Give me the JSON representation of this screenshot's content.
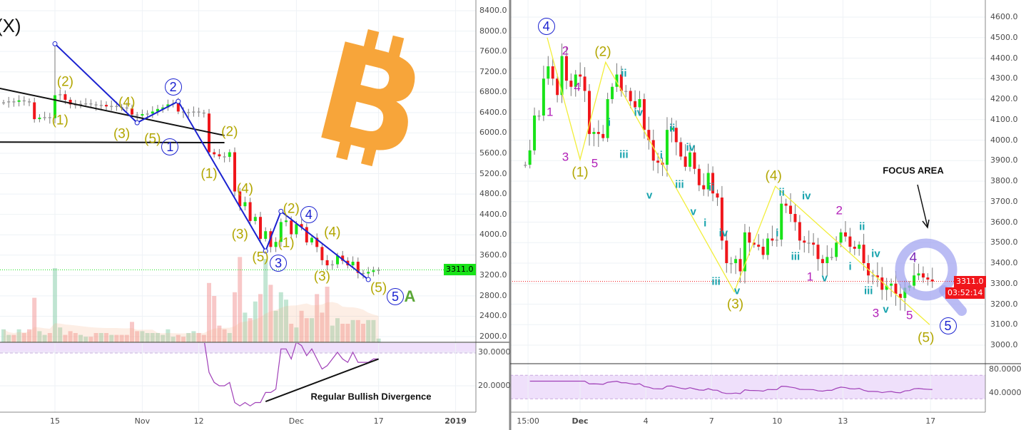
{
  "colors": {
    "up": "#19e319",
    "down": "#f0161b",
    "wick": "#7a7a7a",
    "wave_blue": "#1b22d0",
    "wave_yellow": "#f2ee3a",
    "rsi": "#a040b8",
    "rsi_band": "#efe0fb",
    "bitcoin_orange": "#f7a53a",
    "magnifier": "#a3a6f0",
    "price_line_left": "#19e319",
    "price_line_right": "#f0161b",
    "grid": "#eef2f6"
  },
  "chart_data": [
    {
      "type": "candlestick",
      "timeframe": "daily",
      "first_date": "Oct 5",
      "closes": [
        6600,
        6620,
        6610,
        6640,
        6620,
        6600,
        6270,
        6300,
        6310,
        6290,
        6740,
        6760,
        6650,
        6560,
        6550,
        6570,
        6580,
        6560,
        6540,
        6550,
        6520,
        6530,
        6510,
        6500,
        6480,
        6360,
        6340,
        6370,
        6380,
        6420,
        6470,
        6500,
        6560,
        6580,
        6420,
        6400,
        6410,
        6420,
        6400,
        6380,
        5620,
        5580,
        5540,
        5530,
        5620,
        4850,
        4560,
        4640,
        4270,
        4350,
        3920,
        4070,
        3760,
        3860,
        4250,
        4280,
        4010,
        4210,
        4150,
        3850,
        3940,
        3760,
        3500,
        3400,
        3420,
        3590,
        3490,
        3400,
        3470,
        3250,
        3240,
        3270,
        3300,
        3311
      ],
      "wick_overrides": [
        {
          "date": "Oct 15",
          "high": 7750
        }
      ],
      "volume": [
        7,
        4,
        4,
        7,
        5,
        7,
        24,
        6,
        4,
        5,
        40,
        8,
        4,
        6,
        5,
        4,
        3,
        3,
        5,
        5,
        5,
        4,
        4,
        4,
        4,
        11,
        6,
        6,
        5,
        5,
        5,
        4,
        7,
        3,
        4,
        3,
        5,
        6,
        5,
        4,
        32,
        25,
        9,
        7,
        5,
        27,
        46,
        16,
        13,
        22,
        26,
        45,
        31,
        17,
        27,
        23,
        10,
        8,
        17,
        13,
        13,
        26,
        16,
        30,
        9,
        13,
        10,
        10,
        12,
        12,
        10,
        12,
        12,
        2
      ],
      "rsi": {
        "first_date": "Nov 13",
        "values": [
          34,
          24,
          21,
          20,
          20,
          21,
          15,
          14,
          15,
          14,
          15,
          15,
          18,
          18,
          19,
          31,
          31,
          28,
          33,
          32,
          29,
          31,
          28,
          25,
          26,
          28,
          30,
          28,
          27,
          30,
          27,
          27,
          27,
          28,
          28
        ],
        "axis_labels": [
          "30.0000",
          "20.0000"
        ]
      },
      "price_axis_labels": [
        "8400.0",
        "8000.0",
        "7600.0",
        "7200.0",
        "6800.0",
        "6400.0",
        "6000.0",
        "5600.0",
        "5200.0",
        "4800.0",
        "4400.0",
        "4000.0",
        "3600.0",
        "3200.0",
        "2800.0",
        "2400.0",
        "2000.0"
      ],
      "time_axis": [
        {
          "label": "15",
          "date": "Oct 15"
        },
        {
          "label": "Nov",
          "date": "Nov 1"
        },
        {
          "label": "12",
          "date": "Nov 12"
        },
        {
          "label": "Dec",
          "date": "Dec 1"
        },
        {
          "label": "17",
          "date": "Dec 17"
        },
        {
          "label": "2019",
          "date": "Jan 1 2019"
        }
      ],
      "last_price": "3311.0",
      "wave_line": [
        [
          "Oct 15",
          7750
        ],
        [
          "Oct 31",
          6200
        ],
        [
          "Nov 8",
          6620
        ],
        [
          "Nov 25",
          3680
        ],
        [
          "Nov 28",
          4460
        ],
        [
          "Dec 15",
          3120
        ]
      ],
      "trendlines": [
        [
          [
            "Oct 4",
            6880
          ],
          [
            "Nov 17",
            5950
          ]
        ],
        [
          [
            "Oct 4",
            5820
          ],
          [
            "Nov 17",
            5810
          ]
        ]
      ],
      "divergence_line": [
        [
          "Nov 25",
          15.3
        ],
        [
          "Dec 17",
          28
        ]
      ],
      "annotations": [
        {
          "text": "(X)",
          "date": "Oct 6",
          "price": 8100,
          "style": "black"
        },
        {
          "text": "(2)",
          "date": "Oct 17",
          "price": 7000,
          "style": "olive"
        },
        {
          "text": "(1)",
          "date": "Oct 16",
          "price": 6250,
          "style": "olive"
        },
        {
          "text": "(4)",
          "date": "Oct 29",
          "price": 6600,
          "style": "olive"
        },
        {
          "text": "(3)",
          "date": "Oct 28",
          "price": 5980,
          "style": "olive"
        },
        {
          "text": "(5)",
          "date": "Nov 3",
          "price": 5880,
          "style": "olive"
        },
        {
          "text": "(2)",
          "date": "Nov 18",
          "price": 6020,
          "style": "olive"
        },
        {
          "text": "(1)",
          "date": "Nov 14",
          "price": 5200,
          "style": "olive"
        },
        {
          "text": "(4)",
          "date": "Nov 21",
          "price": 4900,
          "style": "olive"
        },
        {
          "text": "(3)",
          "date": "Nov 20",
          "price": 4000,
          "style": "olive"
        },
        {
          "text": "(5)",
          "date": "Nov 24",
          "price": 3560,
          "style": "olive"
        },
        {
          "text": "(2)",
          "date": "Nov 30",
          "price": 4500,
          "style": "olive"
        },
        {
          "text": "(1)",
          "date": "Nov 29",
          "price": 3840,
          "style": "olive"
        },
        {
          "text": "(4)",
          "date": "Dec 8",
          "price": 4050,
          "style": "olive"
        },
        {
          "text": "(3)",
          "date": "Dec 6",
          "price": 3170,
          "style": "olive"
        },
        {
          "text": "(5)",
          "date": "Dec 17",
          "price": 2950,
          "style": "olive"
        },
        {
          "text": "1",
          "date": "Nov 1",
          "price": 5890,
          "style": "circled"
        },
        {
          "text": "2",
          "date": "Nov 7",
          "price": 6900,
          "style": "circled"
        },
        {
          "text": "3",
          "date": "Nov 25",
          "price": 3480,
          "style": "circled"
        },
        {
          "text": "4",
          "date": "Nov 28",
          "price": 4570,
          "style": "circled"
        },
        {
          "text": "5",
          "date": "Dec 14",
          "price": 2950,
          "style": "circled"
        },
        {
          "text": "A",
          "date": "Dec 21",
          "price": 2820,
          "style": "green-big"
        }
      ],
      "divergence_text": "Regular Bullish Divergence"
    },
    {
      "type": "candlestick",
      "first_time": "Nov 28 12:00",
      "last_time": "Dec 17 02:00",
      "closes": [
        3880,
        3950,
        4120,
        4120,
        4300,
        4360,
        4300,
        4220,
        4410,
        4290,
        4260,
        4320,
        4310,
        4240,
        4030,
        4040,
        4030,
        4010,
        4200,
        4260,
        4320,
        4240,
        4240,
        4190,
        4160,
        4200,
        4050,
        4000,
        3900,
        3890,
        3880,
        4050,
        4060,
        3990,
        3920,
        3870,
        3940,
        3860,
        3780,
        3760,
        3840,
        3740,
        3720,
        3510,
        3400,
        3400,
        3420,
        3360,
        3550,
        3500,
        3490,
        3480,
        3440,
        3520,
        3510,
        3515,
        3690,
        3680,
        3640,
        3600,
        3510,
        3500,
        3500,
        3490,
        3420,
        3400,
        3430,
        3430,
        3500,
        3550,
        3530,
        3480,
        3470,
        3490,
        3400,
        3340,
        3340,
        3330,
        3270,
        3290,
        3300,
        3250,
        3230,
        3280,
        3290,
        3340,
        3350,
        3330,
        3320,
        3311
      ],
      "price_axis_labels": [
        "4600.0",
        "4500.0",
        "4400.0",
        "4300.0",
        "4200.0",
        "4100.0",
        "4000.0",
        "3900.0",
        "3800.0",
        "3700.0",
        "3600.0",
        "3500.0",
        "3400.0",
        "3300.0",
        "3200.0",
        "3100.0",
        "3000.0"
      ],
      "rsi": {
        "axis_labels": [
          "80.0000",
          "40.0000"
        ],
        "band": [
          30,
          70
        ]
      },
      "time_axis": [
        {
          "label": "15:00",
          "date": "Nov 28 15:00"
        },
        {
          "label": "Dec",
          "date": "Dec 1"
        },
        {
          "label": "4",
          "date": "Dec 4"
        },
        {
          "label": "7",
          "date": "Dec 7"
        },
        {
          "label": "10",
          "date": "Dec 10"
        },
        {
          "label": "13",
          "date": "Dec 13"
        },
        {
          "label": "17",
          "date": "Dec 17"
        }
      ],
      "last_price": "3311.0",
      "countdown": "03:52:14",
      "wave_line": [
        [
          "Nov 29 12:00",
          4500
        ],
        [
          "Dec 1 00:00",
          3905
        ],
        [
          "Dec 2 04:00",
          4380
        ],
        [
          "Dec 8 01:00",
          3260
        ],
        [
          "Dec 9 22:00",
          3775
        ],
        [
          "Dec 16 23:00",
          3100
        ]
      ],
      "annotations": [
        {
          "text": "4",
          "date": "Nov 29 11:00",
          "price": 4555,
          "style": "circled"
        },
        {
          "text": "2",
          "date": "Nov 30 08:00",
          "price": 4437,
          "style": "magenta"
        },
        {
          "text": "1",
          "date": "Nov 29 15:00",
          "price": 4137,
          "style": "magenta"
        },
        {
          "text": "4",
          "date": "Nov 30 21:00",
          "price": 4259,
          "style": "magenta"
        },
        {
          "text": "3",
          "date": "Nov 30 08:00",
          "price": 3918,
          "style": "magenta"
        },
        {
          "text": "5",
          "date": "Dec 1 16:00",
          "price": 3887,
          "style": "magenta"
        },
        {
          "text": "(1)",
          "date": "Dec 1 00:00",
          "price": 3842,
          "style": "olive"
        },
        {
          "text": "(2)",
          "date": "Dec 2 01:00",
          "price": 4430,
          "style": "olive"
        },
        {
          "text": "ii",
          "date": "Dec 3 00:00",
          "price": 4325,
          "style": "teal"
        },
        {
          "text": "i",
          "date": "Dec 2 08:00",
          "price": 4085,
          "style": "teal"
        },
        {
          "text": "iv",
          "date": "Dec 3 16:00",
          "price": 4134,
          "style": "teal"
        },
        {
          "text": "iii",
          "date": "Dec 3 00:00",
          "price": 3929,
          "style": "teal"
        },
        {
          "text": "ii",
          "date": "Dec 5 05:00",
          "price": 4057,
          "style": "teal"
        },
        {
          "text": "i",
          "date": "Dec 4 17:00",
          "price": 3925,
          "style": "teal"
        },
        {
          "text": "iv",
          "date": "Dec 6 01:00",
          "price": 3963,
          "style": "teal"
        },
        {
          "text": "v",
          "date": "Dec 4 04:00",
          "price": 3730,
          "style": "teal"
        },
        {
          "text": "iii",
          "date": "Dec 5 13:00",
          "price": 3783,
          "style": "teal"
        },
        {
          "text": "ii",
          "date": "Dec 7 00:00",
          "price": 3769,
          "style": "teal"
        },
        {
          "text": "v",
          "date": "Dec 6 04:00",
          "price": 3650,
          "style": "teal"
        },
        {
          "text": "i",
          "date": "Dec 6 17:00",
          "price": 3595,
          "style": "teal"
        },
        {
          "text": "iv",
          "date": "Dec 7 13:00",
          "price": 3546,
          "style": "teal"
        },
        {
          "text": "iii",
          "date": "Dec 7 05:00",
          "price": 3310,
          "style": "teal"
        },
        {
          "text": "v",
          "date": "Dec 8 04:00",
          "price": 3264,
          "style": "teal"
        },
        {
          "text": "(3)",
          "date": "Dec 7 19:00",
          "price": 3209,
          "style": "olive"
        },
        {
          "text": "(4)",
          "date": "Dec 9 20:00",
          "price": 3824,
          "style": "olive"
        },
        {
          "text": "ii",
          "date": "Dec 10 05:00",
          "price": 3744,
          "style": "teal"
        },
        {
          "text": "i",
          "date": "Dec 10 00:00",
          "price": 3546,
          "style": "teal"
        },
        {
          "text": "iv",
          "date": "Dec 11 08:00",
          "price": 3727,
          "style": "teal"
        },
        {
          "text": "iii",
          "date": "Dec 10 20:00",
          "price": 3431,
          "style": "teal"
        },
        {
          "text": "1",
          "date": "Dec 11 12:00",
          "price": 3334,
          "style": "magenta"
        },
        {
          "text": "v",
          "date": "Dec 12 04:00",
          "price": 3327,
          "style": "teal"
        },
        {
          "text": "2",
          "date": "Dec 12 20:00",
          "price": 3657,
          "style": "magenta"
        },
        {
          "text": "ii",
          "date": "Dec 13 21:00",
          "price": 3577,
          "style": "teal"
        },
        {
          "text": "i",
          "date": "Dec 13 08:00",
          "price": 3383,
          "style": "teal"
        },
        {
          "text": "iv",
          "date": "Dec 14 12:00",
          "price": 3445,
          "style": "teal"
        },
        {
          "text": "iii",
          "date": "Dec 14 04:00",
          "price": 3264,
          "style": "teal"
        },
        {
          "text": "3",
          "date": "Dec 14 12:00",
          "price": 3157,
          "style": "magenta"
        },
        {
          "text": "v",
          "date": "Dec 14 23:00",
          "price": 3174,
          "style": "teal"
        },
        {
          "text": "5",
          "date": "Dec 16 01:00",
          "price": 3146,
          "style": "magenta"
        },
        {
          "text": "4",
          "date": "Dec 16 05:00",
          "price": 3424,
          "style": "purple"
        },
        {
          "text": "(5)",
          "date": "Dec 16 19:00",
          "price": 3035,
          "style": "olive"
        },
        {
          "text": "5",
          "date": "Dec 17 19:00",
          "price": 3094,
          "style": "circled"
        }
      ],
      "focus_text": "FOCUS AREA"
    }
  ]
}
